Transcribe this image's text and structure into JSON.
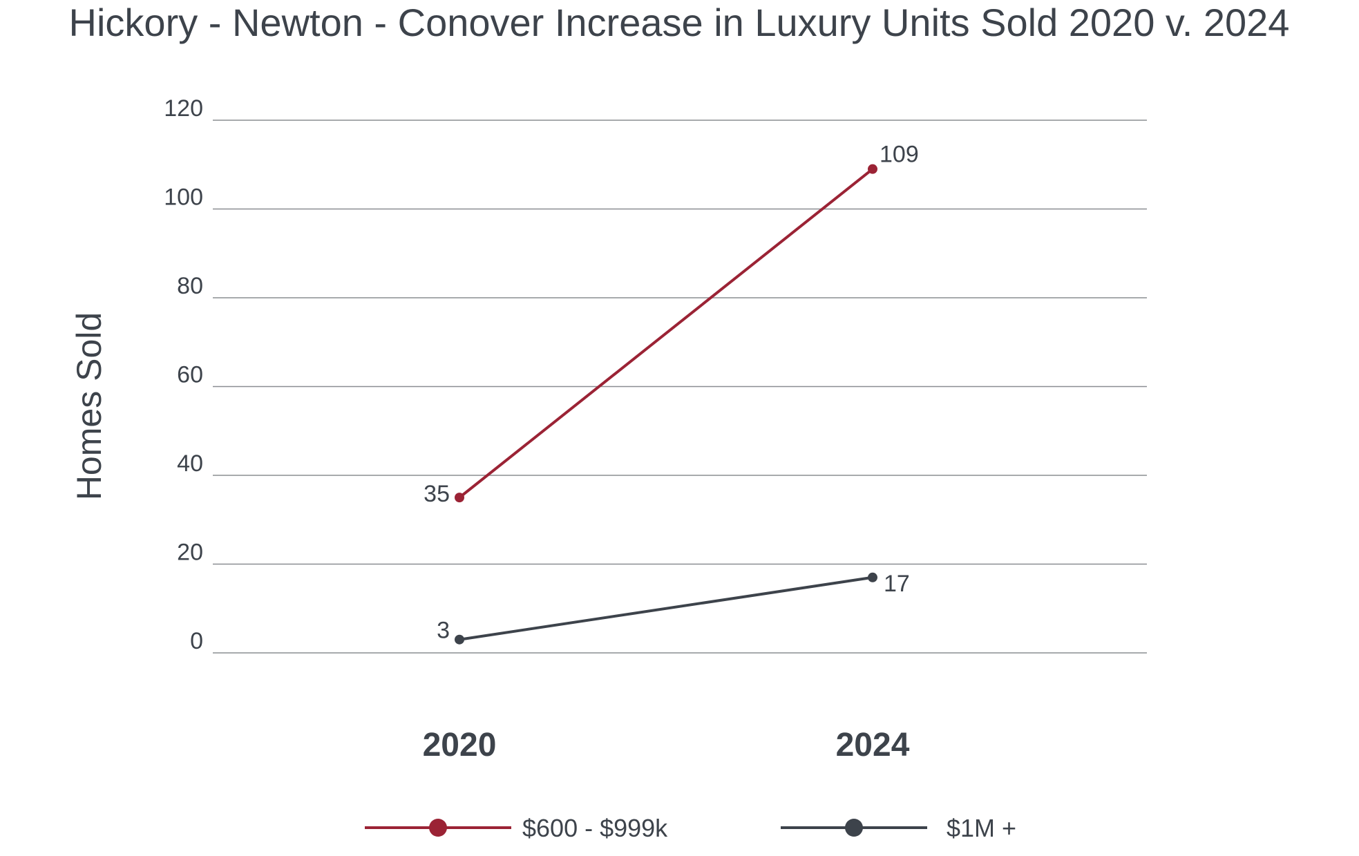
{
  "chart_data": {
    "type": "line",
    "title": "Hickory - Newton - Conover Increase in Luxury Units Sold 2020 v. 2024",
    "xlabel": "",
    "ylabel": "Homes Sold",
    "categories": [
      "2020",
      "2024"
    ],
    "ylim": [
      0,
      120
    ],
    "yticks": [
      "0",
      "20",
      "40",
      "60",
      "80",
      "100",
      "120"
    ],
    "grid": true,
    "legend_position": "bottom",
    "series": [
      {
        "name": "$600 - $999k",
        "values": [
          35,
          109
        ],
        "labels": [
          "35",
          "109"
        ],
        "color": "#9b2335"
      },
      {
        "name": "$1M +",
        "values": [
          3,
          17
        ],
        "labels": [
          "3",
          "17"
        ],
        "color": "#3d434b"
      }
    ]
  }
}
